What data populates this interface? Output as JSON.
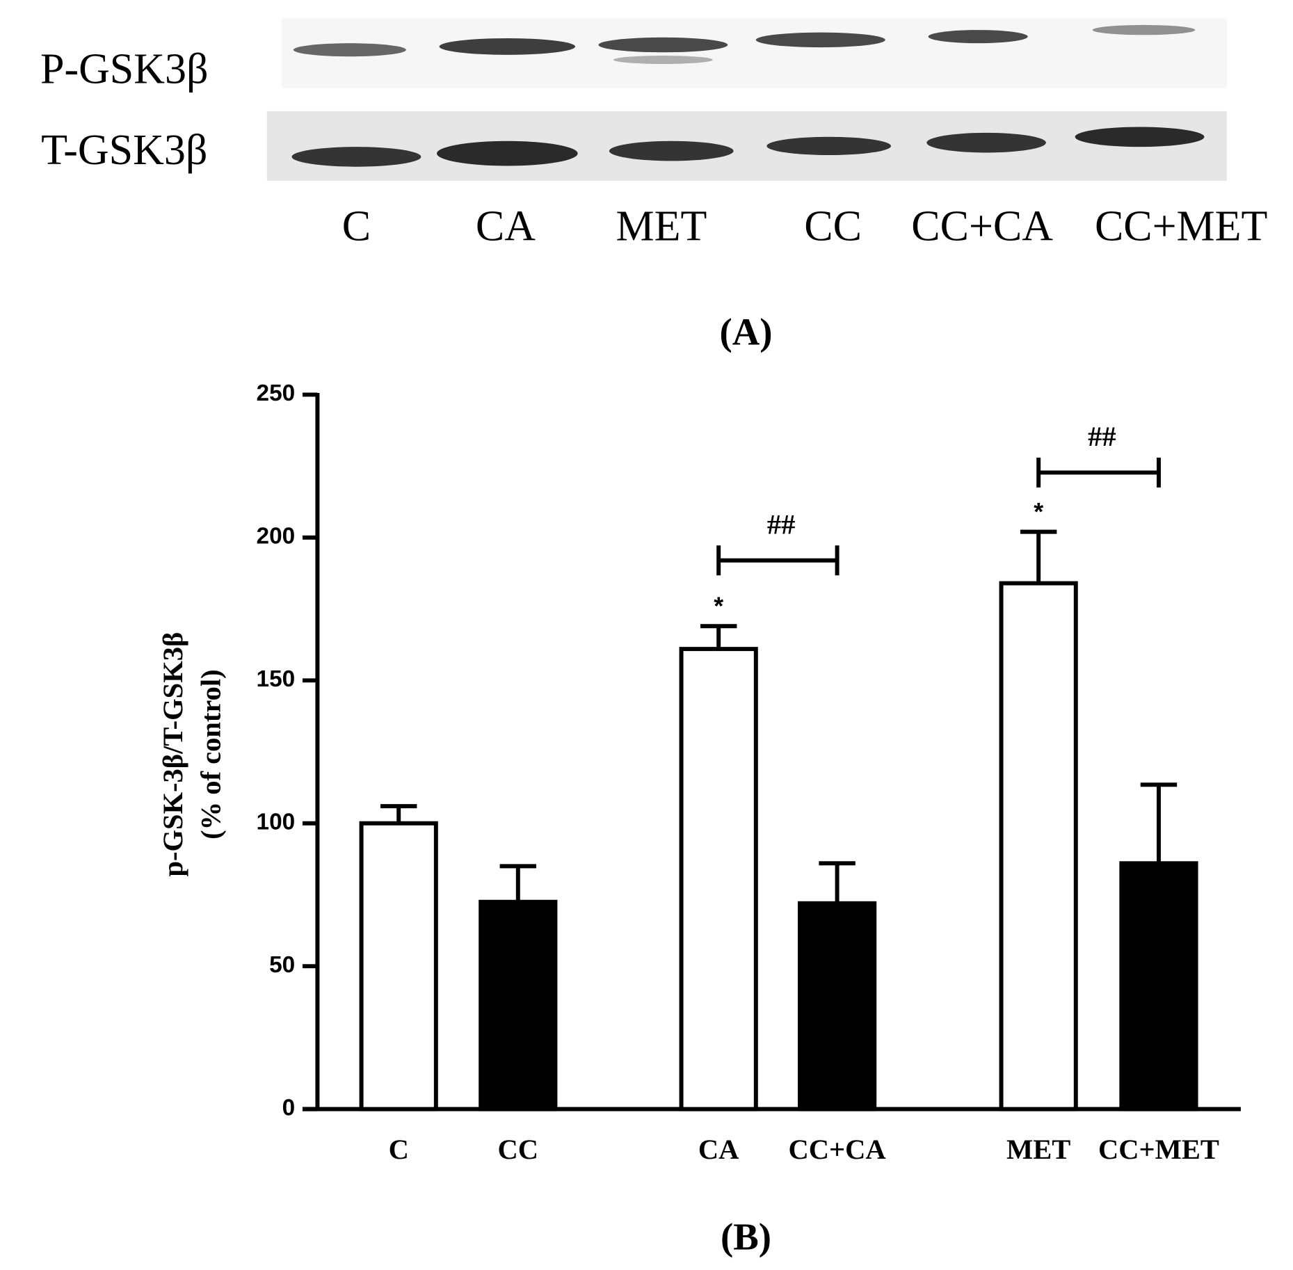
{
  "blot": {
    "row_labels": [
      "P-GSK3β",
      "T-GSK3β"
    ],
    "lanes": [
      "C",
      "CA",
      "MET",
      "CC",
      "CC+CA",
      "CC+MET"
    ],
    "panel_label": "(A)"
  },
  "chart_data": {
    "type": "bar",
    "panel_label": "(B)",
    "y_label": [
      "p-GSK-3β/T-GSK3β",
      "(% of control)"
    ],
    "categories": [
      "C",
      "CC",
      "CA",
      "CC+CA",
      "MET",
      "CC+MET"
    ],
    "values": [
      100,
      72.5,
      161,
      72,
      184,
      86
    ],
    "errors": [
      6,
      12.5,
      8,
      14,
      18,
      27.5
    ],
    "colors": [
      "#ffffff",
      "#000000",
      "#ffffff",
      "#000000",
      "#ffffff",
      "#000000"
    ],
    "ylim": [
      0,
      250
    ],
    "yticks": [
      0,
      50,
      100,
      150,
      200,
      250
    ],
    "annotations": [
      "*",
      "*",
      "##",
      "##"
    ]
  }
}
